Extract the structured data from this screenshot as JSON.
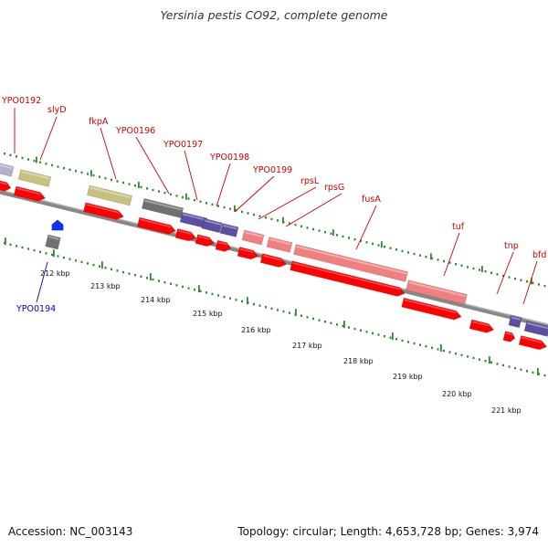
{
  "title": "Yersinia pestis CO92, complete genome",
  "footer": {
    "accession": "Accession: NC_003143",
    "summary": "Topology: circular; Length: 4,653,728 bp; Genes: 3,974"
  },
  "colors": {
    "backbone": "#888888",
    "cds": "#ff0000",
    "gene_forward_label": "#cc0000",
    "gene_reverse_label": "#0000cc",
    "tick": "#2e8b2e",
    "ribosomal": "#f08080",
    "olive": "#c8c080",
    "purple": "#5a4fa0",
    "gray": "#707070",
    "blue_gene": "#1133ff"
  },
  "scale_labels": [
    "212 kbp",
    "213 kbp",
    "214 kbp",
    "215 kbp",
    "216 kbp",
    "217 kbp",
    "218 kbp",
    "219 kbp",
    "220 kbp",
    "221 kbp"
  ],
  "gene_labels_forward": [
    "YPO0192",
    "slyD",
    "fkpA",
    "YPO0196",
    "YPO0197",
    "YPO0198",
    "YPO0199",
    "rpsL",
    "rpsG",
    "fusA",
    "tuf",
    "tnp",
    "bfd"
  ],
  "gene_labels_reverse": [
    "YPO0194"
  ]
}
